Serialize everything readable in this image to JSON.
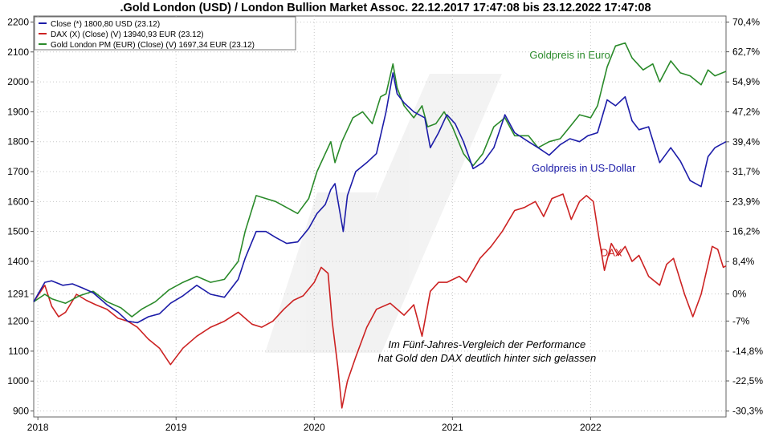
{
  "chart_data": {
    "type": "line",
    "title": ".Gold London (USD) / London Bullion Market Assoc. 22.12.2017 17:47:08 bis 23.12.2022 17:47:08",
    "x_ticks": [
      "2018",
      "2019",
      "2020",
      "2021",
      "2022"
    ],
    "x_tick_values": [
      2018.0,
      2019.0,
      2020.0,
      2021.0,
      2022.0
    ],
    "xlim": [
      2017.97,
      2022.98
    ],
    "ylim_left": [
      880,
      2220
    ],
    "left_ticks": [
      "2200",
      "2100",
      "2000",
      "1900",
      "1800",
      "1700",
      "1600",
      "1500",
      "1400",
      "1291",
      "1200",
      "1100",
      "1000",
      "900"
    ],
    "left_tick_values": [
      2200,
      2100,
      2000,
      1900,
      1800,
      1700,
      1600,
      1500,
      1400,
      1291,
      1200,
      1100,
      1000,
      900
    ],
    "right_axis_base": 1291,
    "right_ticks": [
      "70,4%",
      "62,7%",
      "54,9%",
      "47,2%",
      "39,4%",
      "31,7%",
      "23,9%",
      "16,2%",
      "8,4%",
      "0%",
      "-7%",
      "-14,8%",
      "-22,5%",
      "-30,3%"
    ],
    "right_tick_values": [
      70.4,
      62.7,
      54.9,
      47.2,
      39.4,
      31.7,
      23.9,
      16.2,
      8.4,
      0,
      -7.0,
      -14.8,
      -22.5,
      -30.3
    ],
    "legend": [
      {
        "label": "Close (*) 1800,80 USD (23.12)",
        "color": "#1c1ca8"
      },
      {
        "label": "DAX (X) (Close) (V) 13940,93 EUR (23.12)",
        "color": "#cc2222"
      },
      {
        "label": "Gold London PM (EUR) (Close) (V) 1697,34 EUR (23.12)",
        "color": "#2a8a2a"
      }
    ],
    "annotations": [
      {
        "text": "Goldpreis in Euro",
        "color": "#2a8a2a",
        "x": 2021.85,
        "y": 2078
      },
      {
        "text": "Goldpreis in US-Dollar",
        "color": "#1c1ca8",
        "x": 2021.95,
        "y": 1700
      },
      {
        "text": "DAX",
        "color": "#cc2222",
        "x": 2022.15,
        "y": 1418
      },
      {
        "text": "Im Fünf-Jahres-Vergleich der Performance",
        "color": "#000000",
        "x": 2021.25,
        "y": 1110
      },
      {
        "text": "hat Gold den DAX deutlich hinter sich gelassen",
        "color": "#000000",
        "x": 2021.25,
        "y": 1065
      }
    ],
    "series": [
      {
        "name": "Close (*) 1800,80 USD (23.12)",
        "color": "#1c1ca8",
        "points": [
          [
            2017.97,
            1265
          ],
          [
            2018.05,
            1330
          ],
          [
            2018.1,
            1335
          ],
          [
            2018.18,
            1320
          ],
          [
            2018.25,
            1325
          ],
          [
            2018.33,
            1310
          ],
          [
            2018.4,
            1295
          ],
          [
            2018.5,
            1255
          ],
          [
            2018.58,
            1230
          ],
          [
            2018.65,
            1200
          ],
          [
            2018.72,
            1195
          ],
          [
            2018.8,
            1215
          ],
          [
            2018.88,
            1225
          ],
          [
            2018.96,
            1260
          ],
          [
            2019.05,
            1285
          ],
          [
            2019.15,
            1320
          ],
          [
            2019.25,
            1290
          ],
          [
            2019.35,
            1280
          ],
          [
            2019.45,
            1340
          ],
          [
            2019.5,
            1410
          ],
          [
            2019.58,
            1500
          ],
          [
            2019.65,
            1500
          ],
          [
            2019.72,
            1480
          ],
          [
            2019.8,
            1460
          ],
          [
            2019.88,
            1465
          ],
          [
            2019.96,
            1510
          ],
          [
            2020.02,
            1560
          ],
          [
            2020.08,
            1590
          ],
          [
            2020.12,
            1640
          ],
          [
            2020.15,
            1660
          ],
          [
            2020.18,
            1580
          ],
          [
            2020.21,
            1500
          ],
          [
            2020.24,
            1620
          ],
          [
            2020.3,
            1700
          ],
          [
            2020.38,
            1730
          ],
          [
            2020.45,
            1760
          ],
          [
            2020.52,
            1900
          ],
          [
            2020.57,
            2030
          ],
          [
            2020.6,
            1960
          ],
          [
            2020.65,
            1930
          ],
          [
            2020.72,
            1900
          ],
          [
            2020.8,
            1880
          ],
          [
            2020.84,
            1780
          ],
          [
            2020.9,
            1830
          ],
          [
            2020.96,
            1890
          ],
          [
            2021.02,
            1860
          ],
          [
            2021.08,
            1800
          ],
          [
            2021.15,
            1710
          ],
          [
            2021.22,
            1730
          ],
          [
            2021.3,
            1780
          ],
          [
            2021.38,
            1890
          ],
          [
            2021.45,
            1830
          ],
          [
            2021.55,
            1800
          ],
          [
            2021.62,
            1780
          ],
          [
            2021.7,
            1755
          ],
          [
            2021.78,
            1790
          ],
          [
            2021.85,
            1810
          ],
          [
            2021.92,
            1800
          ],
          [
            2021.98,
            1820
          ],
          [
            2022.05,
            1830
          ],
          [
            2022.12,
            1940
          ],
          [
            2022.18,
            1920
          ],
          [
            2022.25,
            1950
          ],
          [
            2022.3,
            1870
          ],
          [
            2022.35,
            1840
          ],
          [
            2022.42,
            1850
          ],
          [
            2022.5,
            1730
          ],
          [
            2022.58,
            1780
          ],
          [
            2022.65,
            1735
          ],
          [
            2022.72,
            1670
          ],
          [
            2022.8,
            1650
          ],
          [
            2022.85,
            1750
          ],
          [
            2022.9,
            1780
          ],
          [
            2022.98,
            1800
          ]
        ]
      },
      {
        "name": "DAX (X) (Close) (V) 13940,93 EUR (23.12)",
        "color": "#cc2222",
        "points": [
          [
            2017.97,
            1265
          ],
          [
            2018.05,
            1320
          ],
          [
            2018.1,
            1250
          ],
          [
            2018.15,
            1215
          ],
          [
            2018.2,
            1230
          ],
          [
            2018.28,
            1290
          ],
          [
            2018.35,
            1270
          ],
          [
            2018.42,
            1255
          ],
          [
            2018.5,
            1240
          ],
          [
            2018.58,
            1210
          ],
          [
            2018.65,
            1200
          ],
          [
            2018.72,
            1180
          ],
          [
            2018.8,
            1140
          ],
          [
            2018.88,
            1110
          ],
          [
            2018.96,
            1055
          ],
          [
            2019.05,
            1110
          ],
          [
            2019.15,
            1150
          ],
          [
            2019.25,
            1180
          ],
          [
            2019.35,
            1200
          ],
          [
            2019.45,
            1230
          ],
          [
            2019.55,
            1190
          ],
          [
            2019.62,
            1180
          ],
          [
            2019.7,
            1200
          ],
          [
            2019.78,
            1240
          ],
          [
            2019.85,
            1270
          ],
          [
            2019.92,
            1285
          ],
          [
            2020.0,
            1330
          ],
          [
            2020.05,
            1380
          ],
          [
            2020.1,
            1360
          ],
          [
            2020.13,
            1200
          ],
          [
            2020.17,
            1050
          ],
          [
            2020.2,
            910
          ],
          [
            2020.24,
            1000
          ],
          [
            2020.3,
            1080
          ],
          [
            2020.38,
            1180
          ],
          [
            2020.45,
            1240
          ],
          [
            2020.55,
            1260
          ],
          [
            2020.65,
            1220
          ],
          [
            2020.72,
            1255
          ],
          [
            2020.78,
            1150
          ],
          [
            2020.84,
            1300
          ],
          [
            2020.9,
            1330
          ],
          [
            2020.96,
            1330
          ],
          [
            2021.05,
            1350
          ],
          [
            2021.1,
            1330
          ],
          [
            2021.2,
            1410
          ],
          [
            2021.28,
            1450
          ],
          [
            2021.36,
            1500
          ],
          [
            2021.45,
            1570
          ],
          [
            2021.52,
            1580
          ],
          [
            2021.6,
            1600
          ],
          [
            2021.66,
            1550
          ],
          [
            2021.72,
            1610
          ],
          [
            2021.8,
            1625
          ],
          [
            2021.86,
            1540
          ],
          [
            2021.92,
            1600
          ],
          [
            2021.97,
            1620
          ],
          [
            2022.02,
            1600
          ],
          [
            2022.06,
            1480
          ],
          [
            2022.1,
            1370
          ],
          [
            2022.15,
            1460
          ],
          [
            2022.2,
            1420
          ],
          [
            2022.25,
            1450
          ],
          [
            2022.3,
            1400
          ],
          [
            2022.35,
            1420
          ],
          [
            2022.42,
            1350
          ],
          [
            2022.5,
            1320
          ],
          [
            2022.55,
            1390
          ],
          [
            2022.6,
            1410
          ],
          [
            2022.68,
            1290
          ],
          [
            2022.74,
            1215
          ],
          [
            2022.8,
            1290
          ],
          [
            2022.88,
            1450
          ],
          [
            2022.92,
            1440
          ],
          [
            2022.96,
            1380
          ],
          [
            2022.98,
            1385
          ]
        ]
      },
      {
        "name": "Gold London PM (EUR) (Close) (V) 1697,34 EUR (23.12)",
        "color": "#2a8a2a",
        "points": [
          [
            2017.97,
            1265
          ],
          [
            2018.05,
            1290
          ],
          [
            2018.1,
            1275
          ],
          [
            2018.2,
            1260
          ],
          [
            2018.3,
            1285
          ],
          [
            2018.4,
            1300
          ],
          [
            2018.5,
            1265
          ],
          [
            2018.6,
            1245
          ],
          [
            2018.68,
            1215
          ],
          [
            2018.75,
            1240
          ],
          [
            2018.85,
            1265
          ],
          [
            2018.95,
            1305
          ],
          [
            2019.05,
            1330
          ],
          [
            2019.15,
            1350
          ],
          [
            2019.25,
            1330
          ],
          [
            2019.35,
            1340
          ],
          [
            2019.45,
            1400
          ],
          [
            2019.5,
            1500
          ],
          [
            2019.58,
            1620
          ],
          [
            2019.65,
            1610
          ],
          [
            2019.72,
            1600
          ],
          [
            2019.8,
            1580
          ],
          [
            2019.88,
            1560
          ],
          [
            2019.96,
            1610
          ],
          [
            2020.02,
            1700
          ],
          [
            2020.08,
            1760
          ],
          [
            2020.12,
            1800
          ],
          [
            2020.15,
            1730
          ],
          [
            2020.2,
            1800
          ],
          [
            2020.28,
            1880
          ],
          [
            2020.35,
            1900
          ],
          [
            2020.42,
            1860
          ],
          [
            2020.48,
            1950
          ],
          [
            2020.52,
            1960
          ],
          [
            2020.57,
            2060
          ],
          [
            2020.6,
            1980
          ],
          [
            2020.65,
            1920
          ],
          [
            2020.72,
            1880
          ],
          [
            2020.78,
            1920
          ],
          [
            2020.82,
            1850
          ],
          [
            2020.88,
            1860
          ],
          [
            2020.94,
            1900
          ],
          [
            2021.0,
            1850
          ],
          [
            2021.08,
            1760
          ],
          [
            2021.15,
            1720
          ],
          [
            2021.22,
            1760
          ],
          [
            2021.3,
            1850
          ],
          [
            2021.38,
            1880
          ],
          [
            2021.45,
            1820
          ],
          [
            2021.55,
            1820
          ],
          [
            2021.62,
            1780
          ],
          [
            2021.7,
            1800
          ],
          [
            2021.78,
            1810
          ],
          [
            2021.85,
            1850
          ],
          [
            2021.92,
            1890
          ],
          [
            2022.0,
            1880
          ],
          [
            2022.05,
            1920
          ],
          [
            2022.12,
            2050
          ],
          [
            2022.18,
            2120
          ],
          [
            2022.25,
            2130
          ],
          [
            2022.3,
            2080
          ],
          [
            2022.38,
            2040
          ],
          [
            2022.45,
            2060
          ],
          [
            2022.5,
            2000
          ],
          [
            2022.58,
            2070
          ],
          [
            2022.65,
            2030
          ],
          [
            2022.72,
            2020
          ],
          [
            2022.8,
            1990
          ],
          [
            2022.85,
            2040
          ],
          [
            2022.9,
            2020
          ],
          [
            2022.98,
            2035
          ]
        ]
      }
    ]
  }
}
